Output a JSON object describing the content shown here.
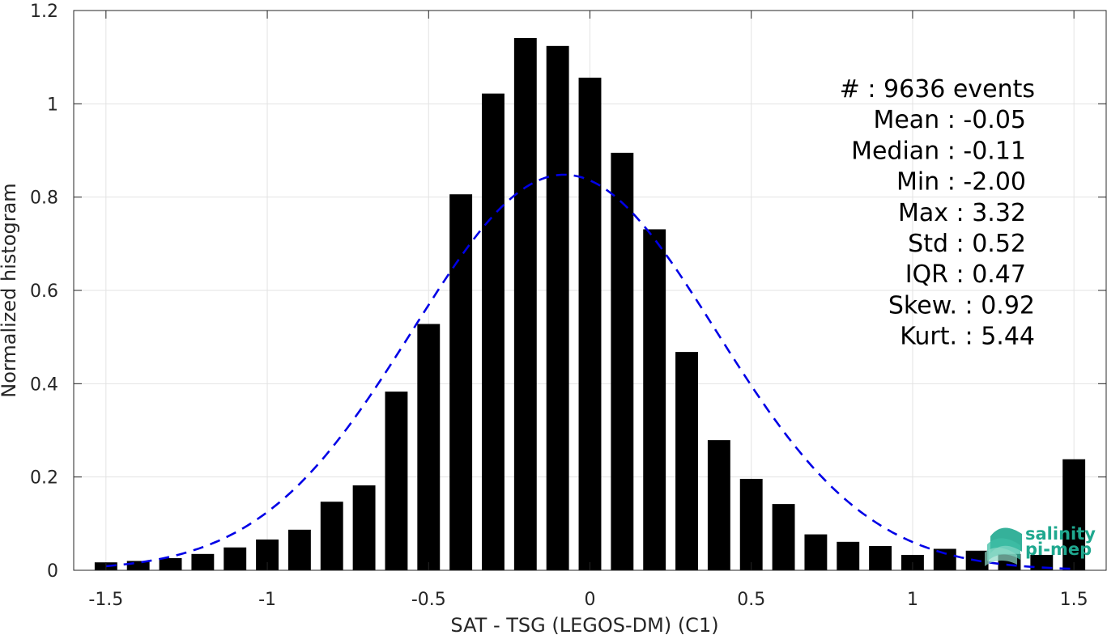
{
  "chart_data": {
    "type": "bar",
    "xlabel": "SAT - TSG (LEGOS-DM) (C1)",
    "ylabel": "Normalized histogram",
    "xlim": [
      -1.6,
      1.6
    ],
    "ylim": [
      0,
      1.2
    ],
    "xticks": [
      -1.5,
      -1,
      -0.5,
      0,
      0.5,
      1,
      1.5
    ],
    "xtick_labels": [
      "-1.5",
      "-1",
      "-0.5",
      "0",
      "0.5",
      "1",
      "1.5"
    ],
    "yticks": [
      0,
      0.2,
      0.4,
      0.6,
      0.8,
      1,
      1.2
    ],
    "ytick_labels": [
      "0",
      "0.2",
      "0.4",
      "0.6",
      "0.8",
      "1",
      "1.2"
    ],
    "grid": true,
    "bar_color": "#000000",
    "bar_width": 0.07,
    "bins": [
      {
        "x": -1.5,
        "y": 0.017
      },
      {
        "x": -1.4,
        "y": 0.02
      },
      {
        "x": -1.3,
        "y": 0.026
      },
      {
        "x": -1.2,
        "y": 0.035
      },
      {
        "x": -1.1,
        "y": 0.049
      },
      {
        "x": -1.0,
        "y": 0.066
      },
      {
        "x": -0.9,
        "y": 0.087
      },
      {
        "x": -0.8,
        "y": 0.147
      },
      {
        "x": -0.7,
        "y": 0.182
      },
      {
        "x": -0.6,
        "y": 0.383
      },
      {
        "x": -0.5,
        "y": 0.528
      },
      {
        "x": -0.4,
        "y": 0.806
      },
      {
        "x": -0.3,
        "y": 1.022
      },
      {
        "x": -0.2,
        "y": 1.141
      },
      {
        "x": -0.1,
        "y": 1.124
      },
      {
        "x": 0.0,
        "y": 1.056
      },
      {
        "x": 0.1,
        "y": 0.895
      },
      {
        "x": 0.2,
        "y": 0.731
      },
      {
        "x": 0.3,
        "y": 0.468
      },
      {
        "x": 0.4,
        "y": 0.279
      },
      {
        "x": 0.5,
        "y": 0.196
      },
      {
        "x": 0.6,
        "y": 0.142
      },
      {
        "x": 0.7,
        "y": 0.077
      },
      {
        "x": 0.8,
        "y": 0.061
      },
      {
        "x": 0.9,
        "y": 0.052
      },
      {
        "x": 1.0,
        "y": 0.033
      },
      {
        "x": 1.1,
        "y": 0.046
      },
      {
        "x": 1.2,
        "y": 0.042
      },
      {
        "x": 1.3,
        "y": 0.035
      },
      {
        "x": 1.4,
        "y": 0.033
      },
      {
        "x": 1.5,
        "y": 0.238
      }
    ],
    "fit_curve": {
      "type": "gaussian",
      "mean": -0.08,
      "std": 0.47,
      "peak": 0.848,
      "color": "#0000e6",
      "style": "dashed",
      "x_range": [
        -1.5,
        1.5
      ]
    },
    "annotations": [
      "#  : 9636 events",
      "Mean : -0.05",
      "Median : -0.11",
      "Min : -2.00",
      "Max : 3.32",
      "Std : 0.52",
      "IQR : 0.47",
      "Skew. : 0.92",
      "Kurt. : 5.44"
    ]
  },
  "logo": {
    "line1": "salinity",
    "line2": "pi-mep",
    "color": "#1fa88f"
  }
}
